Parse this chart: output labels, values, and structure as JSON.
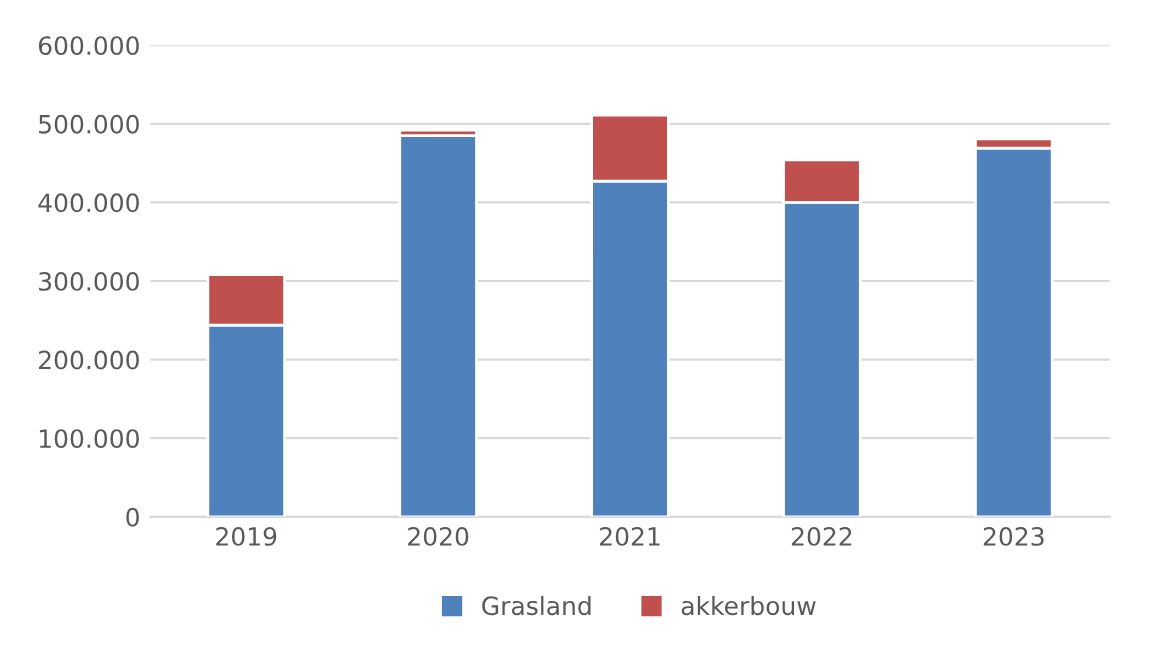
{
  "chart_data": {
    "type": "bar",
    "stacked": true,
    "categories": [
      "2019",
      "2020",
      "2021",
      "2022",
      "2023"
    ],
    "series": [
      {
        "name": "Grasland",
        "color": "#4f81bd",
        "values": [
          244000,
          485000,
          427000,
          400000,
          469000
        ]
      },
      {
        "name": "akkerbouw",
        "color": "#c0504d",
        "values": [
          64000,
          7000,
          84000,
          54000,
          12000
        ]
      }
    ],
    "ylim": [
      0,
      600000
    ],
    "yticks": [
      {
        "value": 0,
        "label": "0"
      },
      {
        "value": 100000,
        "label": "100.000"
      },
      {
        "value": 200000,
        "label": "200.000"
      },
      {
        "value": 300000,
        "label": "300.000"
      },
      {
        "value": 400000,
        "label": "400.000"
      },
      {
        "value": 500000,
        "label": "500.000"
      },
      {
        "value": 600000,
        "label": "600.000"
      }
    ],
    "grid": "y",
    "legend": "bottom"
  }
}
